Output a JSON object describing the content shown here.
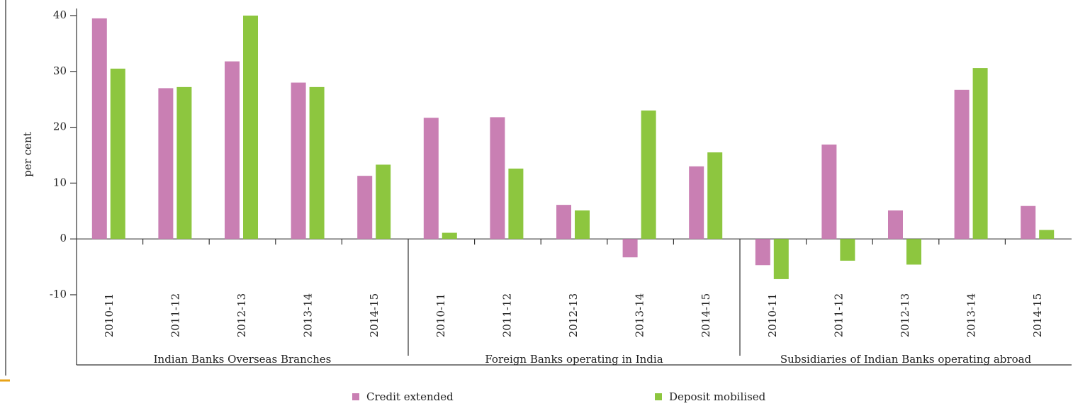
{
  "chart_data": {
    "type": "bar",
    "y_label": "per cent",
    "groups": [
      {
        "name": "Indian Banks Overseas Branches",
        "categories": [
          "2010-11",
          "2011-12",
          "2012-13",
          "2013-14",
          "2014-15"
        ]
      },
      {
        "name": "Foreign Banks operating in India",
        "categories": [
          "2010-11",
          "2011-12",
          "2012-13",
          "2013-14",
          "2014-15"
        ]
      },
      {
        "name": "Subsidiaries of Indian Banks operating abroad",
        "categories": [
          "2010-11",
          "2011-12",
          "2012-13",
          "2013-14",
          "2014-15"
        ]
      }
    ],
    "series": [
      {
        "name": "Credit extended",
        "color": "#c97fb3",
        "values": [
          39.5,
          27,
          31.8,
          28,
          11.3,
          21.7,
          21.8,
          6.1,
          -3.3,
          13,
          -4.7,
          16.9,
          5.1,
          26.7,
          5.9
        ]
      },
      {
        "name": "Deposit mobilised",
        "color": "#8dc63f",
        "values": [
          30.5,
          27.2,
          40,
          27.2,
          13.3,
          1.1,
          12.6,
          5.1,
          23,
          15.5,
          -7.2,
          -3.9,
          -4.6,
          30.6,
          1.6
        ]
      }
    ],
    "ylim": [
      -10,
      40
    ],
    "yticks": [
      -10,
      0,
      10,
      20,
      30,
      40
    ],
    "legend": "bottom"
  }
}
